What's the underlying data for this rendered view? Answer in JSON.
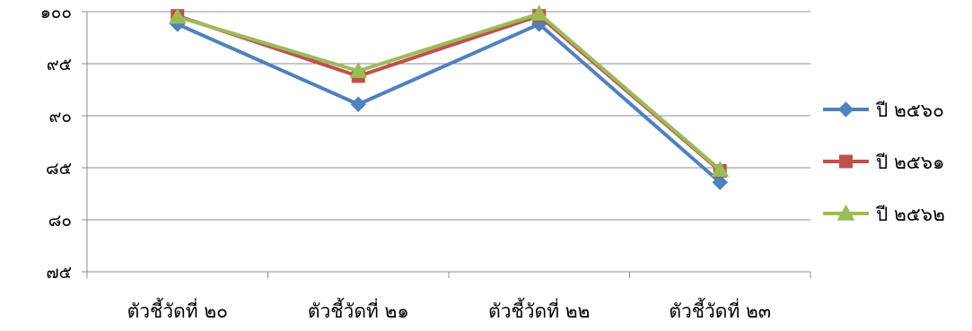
{
  "chart_data": {
    "type": "line",
    "title": "",
    "xlabel": "",
    "ylabel": "",
    "categories": [
      "ตัวชี้วัดที่ ๒๐",
      "ตัวชี้วัดที่ ๒๑",
      "ตัวชี้วัดที่ ๒๒",
      "ตัวชี้วัดที่ ๒๓"
    ],
    "ylim": [
      75,
      100
    ],
    "yticks": [
      100,
      95,
      90,
      85,
      80,
      75
    ],
    "ytick_labels": [
      "๑๐๐",
      "๙๕",
      "๙๐",
      "๘๕",
      "๘๐",
      "๗๕"
    ],
    "grid": true,
    "legend_position": "right",
    "series": [
      {
        "name": "ปี ๒๕๖๐",
        "values": [
          98.8,
          91.1,
          98.8,
          83.6
        ],
        "color": "#4F81BD",
        "marker": "diamond"
      },
      {
        "name": "ปี ๒๕๖๑",
        "values": [
          99.6,
          93.8,
          99.6,
          84.7
        ],
        "color": "#C0504D",
        "marker": "square"
      },
      {
        "name": "ปี ๒๕๖๒",
        "values": [
          99.5,
          94.3,
          99.8,
          84.8
        ],
        "color": "#9BBB59",
        "marker": "triangle"
      }
    ]
  }
}
